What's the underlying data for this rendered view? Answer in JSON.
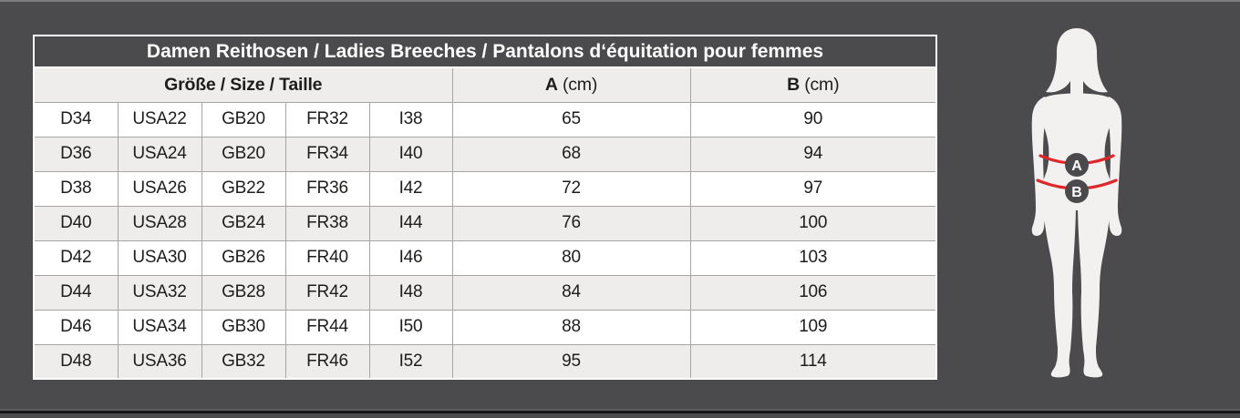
{
  "page": {
    "background_color": "#4b4b4d"
  },
  "table": {
    "title": "Damen Reithosen / Ladies Breeches / Pantalons d‘équitation pour femmes",
    "size_group_header": "Größe / Size / Taille",
    "col_a": {
      "letter": "A",
      "unit": "(cm)"
    },
    "col_b": {
      "letter": "B",
      "unit": "(cm)"
    },
    "rows": [
      {
        "d": "D34",
        "usa": "USA22",
        "gb": "GB20",
        "fr": "FR32",
        "i": "I38",
        "a_cm": "65",
        "b_cm": "90"
      },
      {
        "d": "D36",
        "usa": "USA24",
        "gb": "GB20",
        "fr": "FR34",
        "i": "I40",
        "a_cm": "68",
        "b_cm": "94"
      },
      {
        "d": "D38",
        "usa": "USA26",
        "gb": "GB22",
        "fr": "FR36",
        "i": "I42",
        "a_cm": "72",
        "b_cm": "97"
      },
      {
        "d": "D40",
        "usa": "USA28",
        "gb": "GB24",
        "fr": "FR38",
        "i": "I44",
        "a_cm": "76",
        "b_cm": "100"
      },
      {
        "d": "D42",
        "usa": "USA30",
        "gb": "GB26",
        "fr": "FR40",
        "i": "I46",
        "a_cm": "80",
        "b_cm": "103"
      },
      {
        "d": "D44",
        "usa": "USA32",
        "gb": "GB28",
        "fr": "FR42",
        "i": "I48",
        "a_cm": "84",
        "b_cm": "106"
      },
      {
        "d": "D46",
        "usa": "USA34",
        "gb": "GB30",
        "fr": "FR44",
        "i": "I50",
        "a_cm": "88",
        "b_cm": "109"
      },
      {
        "d": "D48",
        "usa": "USA36",
        "gb": "GB32",
        "fr": "FR46",
        "i": "I52",
        "a_cm": "95",
        "b_cm": "114"
      }
    ]
  },
  "figure": {
    "marker_a": "A",
    "marker_b": "B",
    "colors": {
      "silhouette": "#f2f1ef",
      "measure_line": "#e0262b",
      "marker_circle": "#4a4a4c",
      "marker_text": "#ffffff"
    }
  }
}
